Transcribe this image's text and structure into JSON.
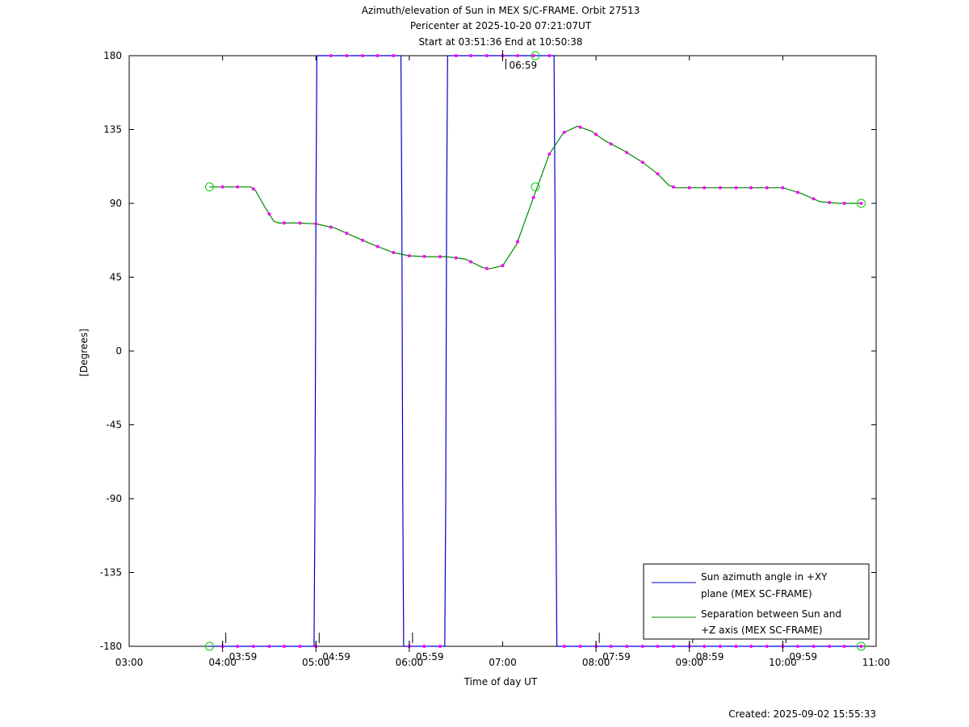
{
  "chart_data": {
    "type": "line",
    "title_lines": [
      "Azimuth/elevation of Sun in MEX S/C-FRAME.  Orbit 27513",
      "Pericenter at 2025-10-20 07:21:07UT",
      "Start at 03:51:36 End at 10:50:38"
    ],
    "xlabel": "Time of day UT",
    "ylabel": "[Degrees]",
    "xlim": [
      3.0,
      11.0
    ],
    "ylim": [
      -180,
      180
    ],
    "x_ticks": [
      {
        "value": 3,
        "label": "03:00"
      },
      {
        "value": 4,
        "label": "04:00"
      },
      {
        "value": 5,
        "label": "05:00"
      },
      {
        "value": 6,
        "label": "06:00"
      },
      {
        "value": 7,
        "label": "07:00"
      },
      {
        "value": 8,
        "label": "08:00"
      },
      {
        "value": 9,
        "label": "09:00"
      },
      {
        "value": 10,
        "label": "10:00"
      },
      {
        "value": 11,
        "label": "11:00"
      }
    ],
    "y_ticks": [
      180,
      135,
      90,
      45,
      0,
      -45,
      -90,
      -135,
      -180
    ],
    "time_annotations": [
      {
        "x": 4.0,
        "y": -180,
        "label": "03:59"
      },
      {
        "x": 5.0,
        "y": -180,
        "label": "04:59"
      },
      {
        "x": 6.0,
        "y": -180,
        "label": "05:59"
      },
      {
        "x": 7.0,
        "y": 180,
        "label": "06:59"
      },
      {
        "x": 8.0,
        "y": -180,
        "label": "07:59"
      },
      {
        "x": 9.0,
        "y": -180,
        "label": "08:59"
      },
      {
        "x": 10.0,
        "y": -180,
        "label": "09:59"
      }
    ],
    "series": [
      {
        "name": "Sun azimuth angle in +XY plane (MEX SC-FRAME)",
        "legend_lines": [
          "Sun azimuth angle in +XY",
          "plane (MEX SC-FRAME)"
        ],
        "color": "#0000cc",
        "points": [
          [
            3.86,
            -180
          ],
          [
            4.98,
            -180
          ],
          [
            4.99,
            -90
          ],
          [
            5.0,
            90
          ],
          [
            5.01,
            180
          ],
          [
            5.91,
            180
          ],
          [
            5.92,
            90
          ],
          [
            5.93,
            -90
          ],
          [
            5.94,
            -180
          ],
          [
            6.38,
            -180
          ],
          [
            6.39,
            -90
          ],
          [
            6.4,
            90
          ],
          [
            6.41,
            180
          ],
          [
            7.55,
            180
          ],
          [
            7.56,
            90
          ],
          [
            7.57,
            -90
          ],
          [
            7.58,
            -180
          ],
          [
            10.84,
            -180
          ]
        ]
      },
      {
        "name": "Separation between Sun and +Z axis (MEX SC-FRAME)",
        "legend_lines": [
          "Separation between Sun and",
          "+Z axis (MEX SC-FRAME)"
        ],
        "color": "#008800",
        "points": [
          [
            3.86,
            100
          ],
          [
            4.0,
            100
          ],
          [
            4.3,
            100
          ],
          [
            4.35,
            98
          ],
          [
            4.45,
            88
          ],
          [
            4.55,
            79
          ],
          [
            4.6,
            78
          ],
          [
            4.8,
            78
          ],
          [
            5.0,
            77.5
          ],
          [
            5.2,
            75
          ],
          [
            5.4,
            70
          ],
          [
            5.6,
            65
          ],
          [
            5.83,
            60
          ],
          [
            6.0,
            58
          ],
          [
            6.2,
            57.5
          ],
          [
            6.4,
            57.5
          ],
          [
            6.6,
            56
          ],
          [
            6.78,
            51
          ],
          [
            6.85,
            50
          ],
          [
            7.0,
            52
          ],
          [
            7.15,
            65
          ],
          [
            7.32,
            92
          ],
          [
            7.5,
            120
          ],
          [
            7.65,
            133
          ],
          [
            7.8,
            137
          ],
          [
            7.95,
            134
          ],
          [
            8.1,
            128
          ],
          [
            8.3,
            122
          ],
          [
            8.5,
            115
          ],
          [
            8.66,
            108
          ],
          [
            8.78,
            101
          ],
          [
            8.85,
            99.5
          ],
          [
            9.0,
            99.5
          ],
          [
            9.5,
            99.5
          ],
          [
            10.0,
            99.5
          ],
          [
            10.2,
            96
          ],
          [
            10.4,
            91
          ],
          [
            10.6,
            90
          ],
          [
            10.84,
            90
          ]
        ]
      }
    ],
    "markers": {
      "magenta_dots_x": [
        4.0,
        4.16,
        4.33,
        4.5,
        4.66,
        4.83,
        5.0,
        5.16,
        5.33,
        5.5,
        5.66,
        5.83,
        6.0,
        6.16,
        6.33,
        6.5,
        6.66,
        6.83,
        7.0,
        7.16,
        7.33,
        7.5,
        7.66,
        7.83,
        8.0,
        8.16,
        8.33,
        8.5,
        8.66,
        8.83,
        9.0,
        9.16,
        9.33,
        9.5,
        9.66,
        9.83,
        10.0,
        10.16,
        10.33,
        10.5,
        10.66,
        10.84
      ],
      "green_circles": [
        [
          3.86,
          100
        ],
        [
          7.35,
          100
        ],
        [
          10.84,
          90
        ],
        [
          3.86,
          -180
        ],
        [
          7.35,
          180
        ],
        [
          10.84,
          -180
        ]
      ]
    },
    "legend_position": "bottom-right",
    "grid": false
  },
  "footer": {
    "created": "Created: 2025-09-02 15:55:33"
  }
}
